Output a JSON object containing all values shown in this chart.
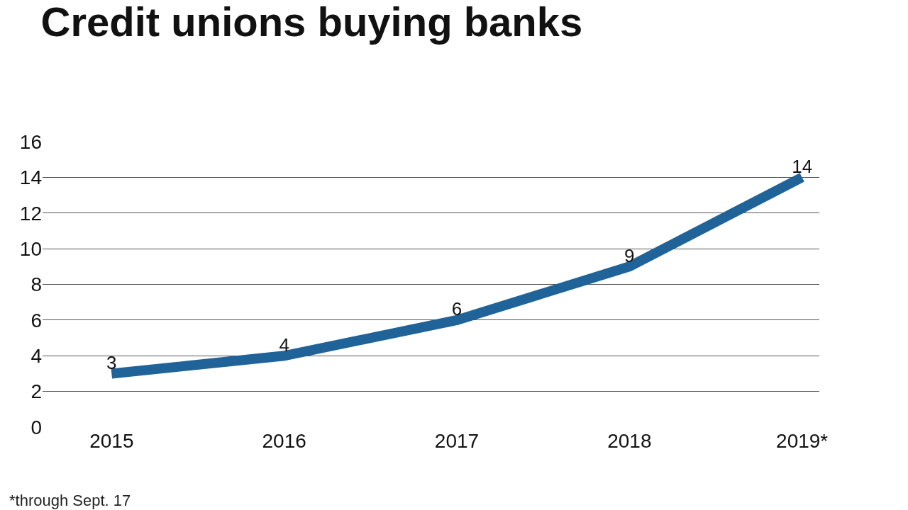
{
  "chart_data": {
    "type": "line",
    "title": "Credit unions buying banks",
    "categories": [
      "2015",
      "2016",
      "2017",
      "2018",
      "2019*"
    ],
    "values": [
      3,
      4,
      6,
      9,
      14
    ],
    "color": "#1f6399",
    "ylim": [
      0,
      16
    ],
    "yticks": [
      0,
      2,
      4,
      6,
      8,
      10,
      12,
      14,
      16
    ],
    "grid": "y",
    "data_labels": true,
    "annotations": [
      "*through Sept. 17"
    ]
  }
}
